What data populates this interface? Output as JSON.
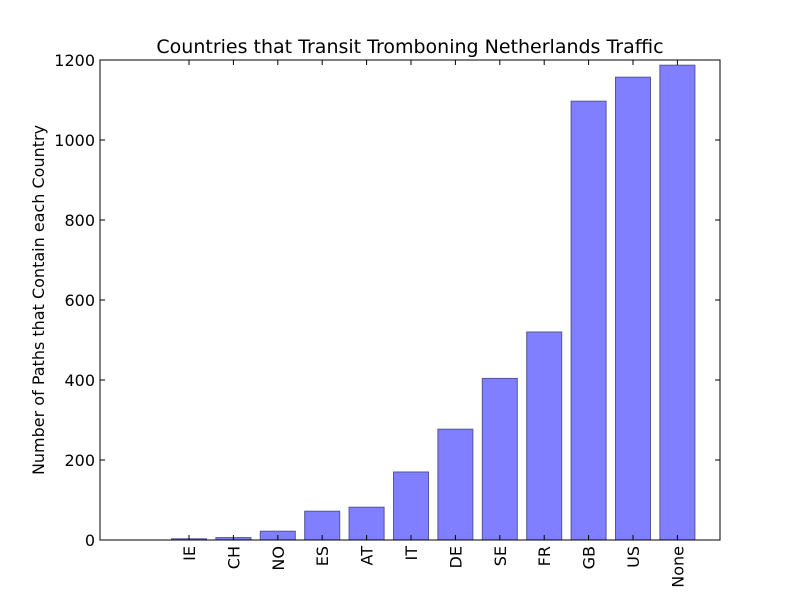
{
  "chart_data": {
    "type": "bar",
    "title": "Countries that Transit Tromboning Netherlands Traffic",
    "xlabel": "",
    "ylabel": "Number of Paths that Contain each Country",
    "categories": [
      "IE",
      "CH",
      "NO",
      "ES",
      "AT",
      "IT",
      "DE",
      "SE",
      "FR",
      "GB",
      "US",
      "None"
    ],
    "values": [
      3,
      6,
      22,
      72,
      82,
      170,
      277,
      404,
      520,
      1097,
      1157,
      1187
    ],
    "ylim": [
      0,
      1200
    ],
    "yticks": [
      "0",
      "200",
      "400",
      "600",
      "800",
      "1000",
      "1200"
    ],
    "grid": false,
    "legend": "none",
    "bar_color": "#7f7fff",
    "bar_edge_color": "#555599"
  }
}
